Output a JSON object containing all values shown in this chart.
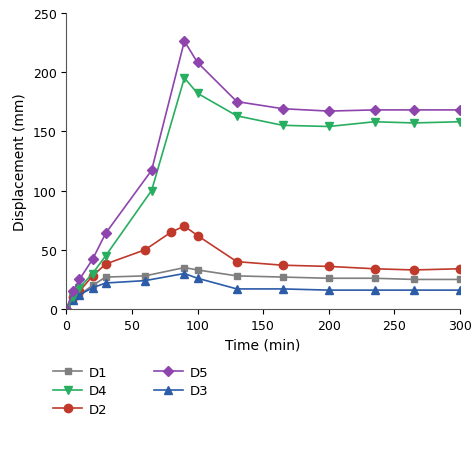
{
  "title": "",
  "xlabel": "Time (min)",
  "ylabel": "Displacement (mm)",
  "ylim": [
    0,
    250
  ],
  "xlim": [
    0,
    300
  ],
  "xticks": [
    0,
    50,
    100,
    150,
    200,
    250,
    300
  ],
  "yticks": [
    0,
    50,
    100,
    150,
    200,
    250
  ],
  "series": {
    "D1": {
      "x": [
        0,
        5,
        10,
        20,
        30,
        60,
        90,
        100,
        130,
        165,
        200,
        235,
        265,
        300
      ],
      "y": [
        0,
        8,
        12,
        20,
        27,
        28,
        35,
        33,
        28,
        27,
        26,
        26,
        25,
        25
      ],
      "color": "#7f7f7f",
      "marker": "s",
      "markersize": 5
    },
    "D2": {
      "x": [
        0,
        5,
        10,
        20,
        30,
        60,
        80,
        90,
        100,
        130,
        165,
        200,
        235,
        265,
        300
      ],
      "y": [
        0,
        10,
        15,
        28,
        38,
        50,
        65,
        70,
        62,
        40,
        37,
        36,
        34,
        33,
        34
      ],
      "color": "#c0392b",
      "marker": "o",
      "markersize": 6
    },
    "D3": {
      "x": [
        0,
        5,
        10,
        20,
        30,
        60,
        90,
        100,
        130,
        165,
        200,
        235,
        265,
        300
      ],
      "y": [
        0,
        8,
        12,
        18,
        22,
        24,
        30,
        26,
        17,
        17,
        16,
        16,
        16,
        16
      ],
      "color": "#2c5ba8",
      "marker": "^",
      "markersize": 6
    },
    "D4": {
      "x": [
        0,
        5,
        10,
        20,
        30,
        65,
        90,
        100,
        130,
        165,
        200,
        235,
        265,
        300
      ],
      "y": [
        0,
        10,
        18,
        30,
        45,
        100,
        195,
        182,
        163,
        155,
        154,
        158,
        157,
        158
      ],
      "color": "#27ae60",
      "marker": "v",
      "markersize": 6
    },
    "D5": {
      "x": [
        0,
        5,
        10,
        20,
        30,
        65,
        90,
        100,
        130,
        165,
        200,
        235,
        265,
        300
      ],
      "y": [
        0,
        15,
        25,
        42,
        64,
        117,
        226,
        208,
        175,
        169,
        167,
        168,
        168,
        168
      ],
      "color": "#8e44ad",
      "marker": "D",
      "markersize": 5
    }
  },
  "legend_order": [
    "D1",
    "D2",
    "D3",
    "D4",
    "D5"
  ],
  "linewidth": 1.2,
  "figsize": [
    4.74,
    4.56
  ],
  "dpi": 100
}
